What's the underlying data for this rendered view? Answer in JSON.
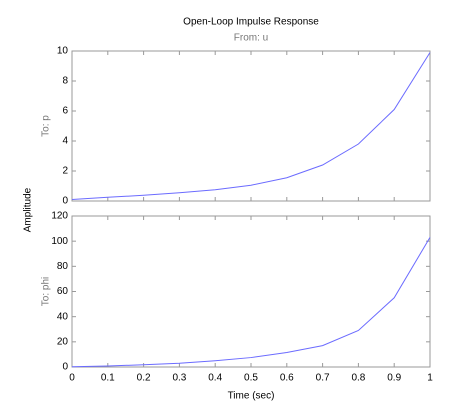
{
  "figure": {
    "title": "Open-Loop Impulse Response",
    "subtitle": "From: u",
    "xlabel": "Time (sec)",
    "ylabel": "Amplitude"
  },
  "chart_data": [
    {
      "type": "line",
      "ylabel": "To: p",
      "color": "#6b6bff",
      "x": [
        0,
        0.1,
        0.2,
        0.3,
        0.4,
        0.5,
        0.6,
        0.7,
        0.8,
        0.9,
        1
      ],
      "values": [
        0.1,
        0.25,
        0.38,
        0.55,
        0.75,
        1.05,
        1.55,
        2.4,
        3.8,
        6.1,
        9.9
      ],
      "xlim": [
        0,
        1
      ],
      "ylim": [
        0,
        10
      ],
      "yticks": [
        0,
        2,
        4,
        6,
        8,
        10
      ]
    },
    {
      "type": "line",
      "ylabel": "To: phi",
      "color": "#6b6bff",
      "x": [
        0,
        0.1,
        0.2,
        0.3,
        0.4,
        0.5,
        0.6,
        0.7,
        0.8,
        0.9,
        1
      ],
      "values": [
        0.2,
        0.8,
        1.8,
        3,
        5,
        7.5,
        11.5,
        17,
        29,
        55,
        103
      ],
      "xlim": [
        0,
        1
      ],
      "ylim": [
        0,
        120
      ],
      "yticks": [
        0,
        20,
        40,
        60,
        80,
        100,
        120
      ],
      "xticks": [
        0,
        0.1,
        0.2,
        0.3,
        0.4,
        0.5,
        0.6,
        0.7,
        0.8,
        0.9,
        1
      ]
    }
  ]
}
